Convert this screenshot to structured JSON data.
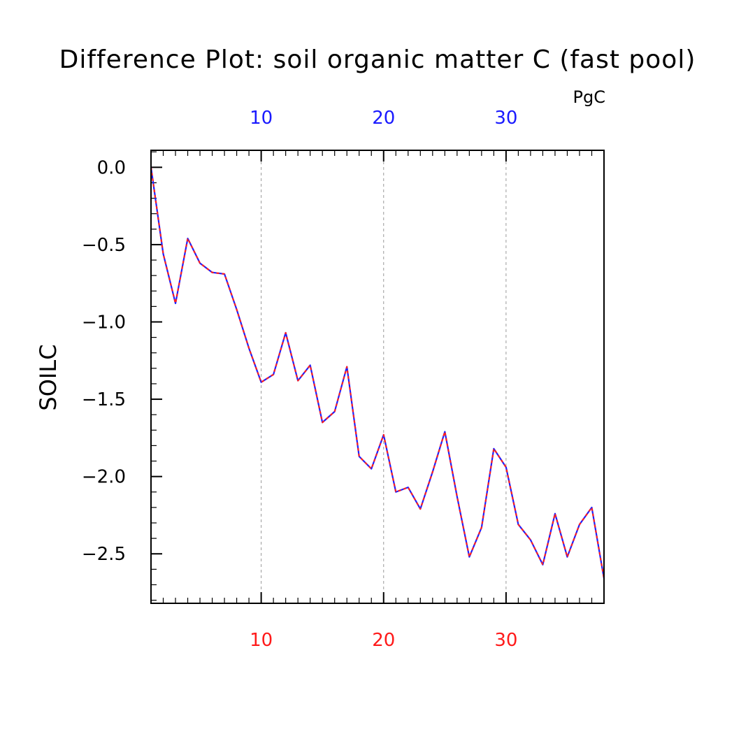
{
  "chart_data": {
    "type": "line",
    "title": "Difference Plot: soil organic matter C (fast pool)",
    "units": "PgC",
    "ylabel": "SOILC",
    "xlabel": "",
    "xlim": [
      1,
      38
    ],
    "ylim": [
      -2.82,
      0.11
    ],
    "x_ticks": [
      10,
      20,
      30
    ],
    "y_ticks": [
      "0.0",
      "−0.5",
      "−1.0",
      "−1.5",
      "−2.0",
      "−2.5"
    ],
    "y_tick_values": [
      0.0,
      -0.5,
      -1.0,
      -1.5,
      -2.0,
      -2.5
    ],
    "grid": "vertical-dashed",
    "colors": {
      "top_axis_labels": "#1a1aff",
      "bottom_axis_labels": "#ff1a1a",
      "series_solid": "#2020ff",
      "series_dashed": "#ff2020",
      "grid": "#999999",
      "frame": "#000000"
    },
    "x": [
      1,
      2,
      3,
      4,
      5,
      6,
      7,
      8,
      9,
      10,
      11,
      12,
      13,
      14,
      15,
      16,
      17,
      18,
      19,
      20,
      21,
      22,
      23,
      24,
      25,
      26,
      27,
      28,
      29,
      30,
      31,
      32,
      33,
      34,
      35,
      36,
      37,
      38
    ],
    "series": [
      {
        "values": [
          0.0,
          -0.56,
          -0.88,
          -0.46,
          -0.62,
          -0.68,
          -0.69,
          -0.92,
          -1.17,
          -1.39,
          -1.34,
          -1.07,
          -1.38,
          -1.28,
          -1.65,
          -1.58,
          -1.29,
          -1.87,
          -1.95,
          -1.73,
          -2.1,
          -2.07,
          -2.21,
          -1.97,
          -1.71,
          -2.13,
          -2.52,
          -2.33,
          -1.82,
          -1.94,
          -2.31,
          -2.41,
          -2.57,
          -2.24,
          -2.52,
          -2.31,
          -2.2,
          -2.66
        ]
      }
    ]
  }
}
